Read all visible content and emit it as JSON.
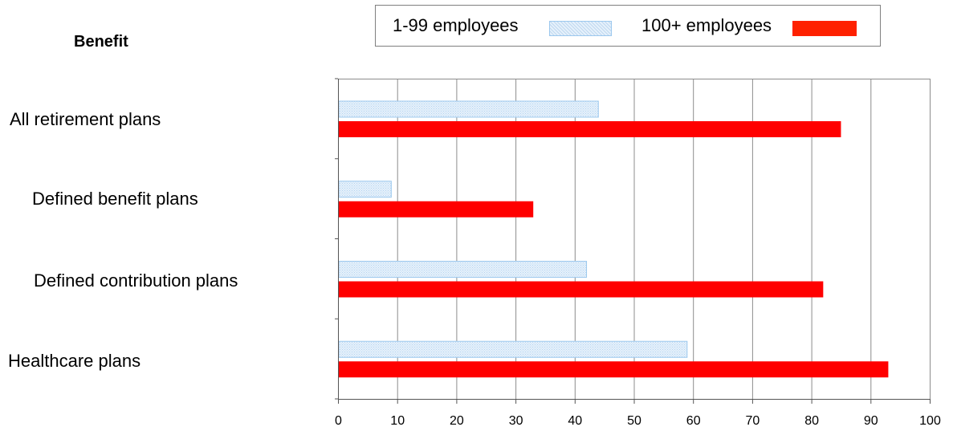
{
  "header": {
    "benefit_label": "Benefit"
  },
  "legend": {
    "small_label": "1-99 employees",
    "large_label": "100+ employees"
  },
  "chart_data": {
    "type": "bar",
    "orientation": "horizontal",
    "categories": [
      "All retirement plans",
      "Defined benefit plans",
      "Defined contribution plans",
      "Healthcare plans"
    ],
    "series": [
      {
        "name": "1-99 employees",
        "values": [
          44,
          9,
          42,
          59
        ],
        "color": "#e6f1fb",
        "border": "#9cc8ee",
        "pattern": "hatched"
      },
      {
        "name": "100+ employees",
        "values": [
          85,
          33,
          82,
          93
        ],
        "color": "#ff0000"
      }
    ],
    "xlim": [
      0,
      100
    ],
    "xticks": [
      0,
      10,
      20,
      30,
      40,
      50,
      60,
      70,
      80,
      90,
      100
    ],
    "grid": true,
    "legend_position": "top"
  }
}
